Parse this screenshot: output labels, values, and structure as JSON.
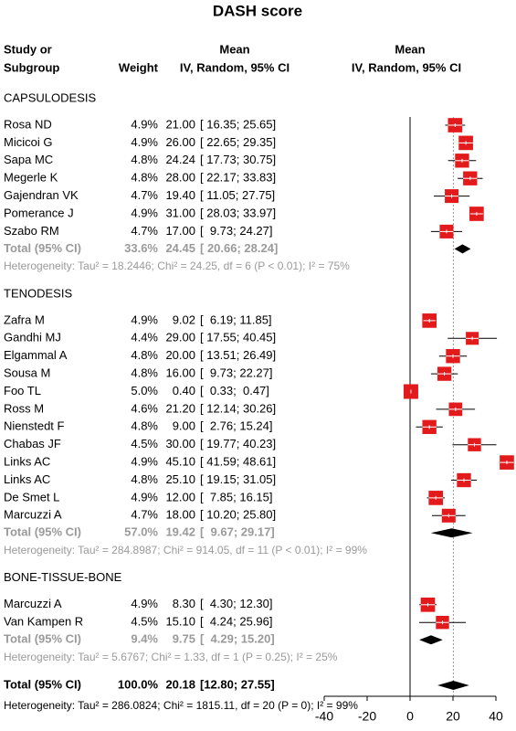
{
  "chart_data": {
    "type": "forest",
    "title": "DASH score",
    "columns": {
      "study": [
        "Study or",
        "Subgroup"
      ],
      "weight": "Weight",
      "effect": [
        "Mean",
        "IV, Random, 95% CI"
      ],
      "plot": [
        "Mean",
        "IV, Random, 95% CI"
      ]
    },
    "square_color": "#e31a1c",
    "diamond_color": "#000000",
    "xlim": [
      -40,
      40
    ],
    "xticks": [
      -40,
      -20,
      0,
      20,
      40
    ],
    "groups": [
      {
        "name": "CAPSULODESIS",
        "studies": [
          {
            "name": "Rosa ND",
            "weight": 4.9,
            "weight_label": "4.9%",
            "mean": 21,
            "mean_label": "21.00",
            "lower": 16.35,
            "upper": 25.65,
            "ci_label": "[ 16.35; 25.65]"
          },
          {
            "name": "Micicoi G",
            "weight": 4.9,
            "weight_label": "4.9%",
            "mean": 26,
            "mean_label": "26.00",
            "lower": 22.65,
            "upper": 29.35,
            "ci_label": "[ 22.65; 29.35]"
          },
          {
            "name": "Sapa MC",
            "weight": 4.8,
            "weight_label": "4.8%",
            "mean": 24.24,
            "mean_label": "24.24",
            "lower": 17.73,
            "upper": 30.75,
            "ci_label": "[ 17.73; 30.75]"
          },
          {
            "name": "Megerle K",
            "weight": 4.8,
            "weight_label": "4.8%",
            "mean": 28,
            "mean_label": "28.00",
            "lower": 22.17,
            "upper": 33.83,
            "ci_label": "[ 22.17; 33.83]"
          },
          {
            "name": "Gajendran VK",
            "weight": 4.7,
            "weight_label": "4.7%",
            "mean": 19.4,
            "mean_label": "19.40",
            "lower": 11.05,
            "upper": 27.75,
            "ci_label": "[ 11.05; 27.75]"
          },
          {
            "name": "Pomerance J",
            "weight": 4.9,
            "weight_label": "4.9%",
            "mean": 31,
            "mean_label": "31.00",
            "lower": 28.03,
            "upper": 33.97,
            "ci_label": "[ 28.03; 33.97]"
          },
          {
            "name": "Szabo RM",
            "weight": 4.7,
            "weight_label": "4.7%",
            "mean": 17,
            "mean_label": "17.00",
            "lower": 9.73,
            "upper": 24.27,
            "ci_label": "[  9.73; 24.27]"
          }
        ],
        "total": {
          "name": "Total (95% CI)",
          "weight": 33.6,
          "weight_label": "33.6%",
          "mean": 24.45,
          "mean_label": "24.45",
          "lower": 20.66,
          "upper": 28.24,
          "ci_label": "[ 20.66; 28.24]"
        },
        "heterogeneity": "Heterogeneity: Tau² = 18.2446; Chi² = 24.25, df = 6 (P < 0.01); I² = 75%"
      },
      {
        "name": "TENODESIS",
        "studies": [
          {
            "name": "Zafra M",
            "weight": 4.9,
            "weight_label": "4.9%",
            "mean": 9.02,
            "mean_label": "9.02",
            "lower": 6.19,
            "upper": 11.85,
            "ci_label": "[  6.19; 11.85]"
          },
          {
            "name": "Gandhi MJ",
            "weight": 4.4,
            "weight_label": "4.4%",
            "mean": 29,
            "mean_label": "29.00",
            "lower": 17.55,
            "upper": 40.45,
            "ci_label": "[ 17.55; 40.45]"
          },
          {
            "name": "Elgammal A",
            "weight": 4.8,
            "weight_label": "4.8%",
            "mean": 20,
            "mean_label": "20.00",
            "lower": 13.51,
            "upper": 26.49,
            "ci_label": "[ 13.51; 26.49]"
          },
          {
            "name": "Sousa M",
            "weight": 4.8,
            "weight_label": "4.8%",
            "mean": 16,
            "mean_label": "16.00",
            "lower": 9.73,
            "upper": 22.27,
            "ci_label": "[  9.73; 22.27]"
          },
          {
            "name": "Foo TL",
            "weight": 5,
            "weight_label": "5.0%",
            "mean": 0.4,
            "mean_label": "0.40",
            "lower": 0.33,
            "upper": 0.47,
            "ci_label": "[  0.33;  0.47]"
          },
          {
            "name": "Ross M",
            "weight": 4.6,
            "weight_label": "4.6%",
            "mean": 21.2,
            "mean_label": "21.20",
            "lower": 12.14,
            "upper": 30.26,
            "ci_label": "[ 12.14; 30.26]"
          },
          {
            "name": "Nienstedt F",
            "weight": 4.8,
            "weight_label": "4.8%",
            "mean": 9,
            "mean_label": "9.00",
            "lower": 2.76,
            "upper": 15.24,
            "ci_label": "[  2.76; 15.24]"
          },
          {
            "name": "Chabas JF",
            "weight": 4.5,
            "weight_label": "4.5%",
            "mean": 30,
            "mean_label": "30.00",
            "lower": 19.77,
            "upper": 40.23,
            "ci_label": "[ 19.77; 40.23]"
          },
          {
            "name": "Links AC",
            "weight": 4.9,
            "weight_label": "4.9%",
            "mean": 45.1,
            "mean_label": "45.10",
            "lower": 41.59,
            "upper": 48.61,
            "ci_label": "[ 41.59; 48.61]"
          },
          {
            "name": "Links AC",
            "weight": 4.8,
            "weight_label": "4.8%",
            "mean": 25.1,
            "mean_label": "25.10",
            "lower": 19.15,
            "upper": 31.05,
            "ci_label": "[ 19.15; 31.05]"
          },
          {
            "name": "De Smet L",
            "weight": 4.9,
            "weight_label": "4.9%",
            "mean": 12,
            "mean_label": "12.00",
            "lower": 7.85,
            "upper": 16.15,
            "ci_label": "[  7.85; 16.15]"
          },
          {
            "name": "Marcuzzi A",
            "weight": 4.7,
            "weight_label": "4.7%",
            "mean": 18,
            "mean_label": "18.00",
            "lower": 10.2,
            "upper": 25.8,
            "ci_label": "[ 10.20; 25.80]"
          }
        ],
        "total": {
          "name": "Total (95% CI)",
          "weight": 57,
          "weight_label": "57.0%",
          "mean": 19.42,
          "mean_label": "19.42",
          "lower": 9.67,
          "upper": 29.17,
          "ci_label": "[  9.67; 29.17]"
        },
        "heterogeneity": "Heterogeneity: Tau² = 284.8987; Chi² = 914.05, df = 11 (P < 0.01); I² = 99%"
      },
      {
        "name": "BONE-TISSUE-BONE",
        "studies": [
          {
            "name": "Marcuzzi A",
            "weight": 4.9,
            "weight_label": "4.9%",
            "mean": 8.3,
            "mean_label": "8.30",
            "lower": 4.3,
            "upper": 12.3,
            "ci_label": "[  4.30; 12.30]"
          },
          {
            "name": "Van Kampen R",
            "weight": 4.5,
            "weight_label": "4.5%",
            "mean": 15.1,
            "mean_label": "15.10",
            "lower": 4.24,
            "upper": 25.96,
            "ci_label": "[  4.24; 25.96]"
          }
        ],
        "total": {
          "name": "Total (95% CI)",
          "weight": 9.4,
          "weight_label": "9.4%",
          "mean": 9.75,
          "mean_label": "9.75",
          "lower": 4.29,
          "upper": 15.2,
          "ci_label": "[  4.29; 15.20]"
        },
        "heterogeneity": "Heterogeneity: Tau² = 5.6767; Chi² = 1.33, df = 1 (P = 0.25); I² = 25%"
      }
    ],
    "overall": {
      "name": "Total (95% CI)",
      "weight": 100,
      "weight_label": "100.0%",
      "mean": 20.18,
      "mean_label": "20.18",
      "lower": 12.8,
      "upper": 27.55,
      "ci_label": "[12.80; 27.55]",
      "heterogeneity": "Heterogeneity: Tau² = 286.0824; Chi² = 1815.11, df = 20 (P = 0); I² = 99%"
    }
  }
}
